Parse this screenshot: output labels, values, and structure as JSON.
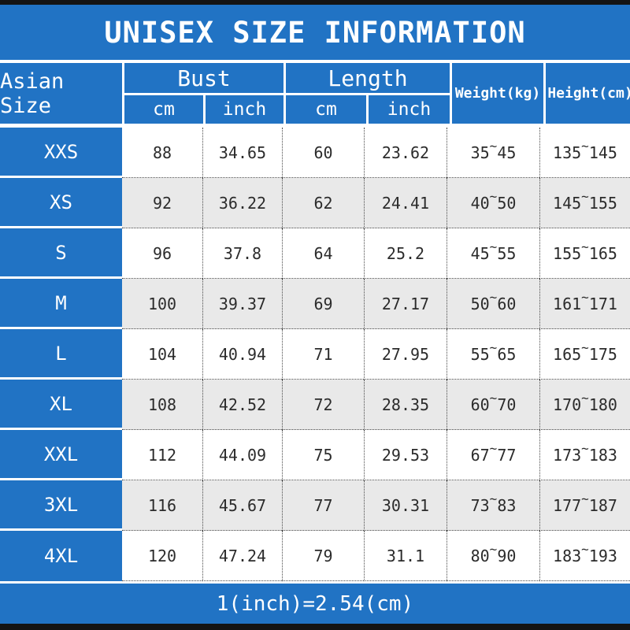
{
  "title": "UNISEX SIZE INFORMATION",
  "footer_note": "1(inch)=2.54(cm)",
  "colors": {
    "header_blue": "#2173c4",
    "alt_row_gray": "#e9e9e9",
    "frame_black": "#141414",
    "text_dark": "#2b2b2b"
  },
  "header": {
    "size_column": "Asian Size",
    "bust_group": "Bust",
    "length_group": "Length",
    "sub_cm": "cm",
    "sub_inch": "inch",
    "weight_column": "Weight(kg)",
    "height_column": "Height(cm)",
    "tilde": "~"
  },
  "rows": [
    {
      "size": "XXS",
      "bust_cm": "88",
      "bust_inch": "34.65",
      "length_cm": "60",
      "length_inch": "23.62",
      "weight": [
        "35",
        "45"
      ],
      "height": [
        "135",
        "145"
      ]
    },
    {
      "size": "XS",
      "bust_cm": "92",
      "bust_inch": "36.22",
      "length_cm": "62",
      "length_inch": "24.41",
      "weight": [
        "40",
        "50"
      ],
      "height": [
        "145",
        "155"
      ]
    },
    {
      "size": "S",
      "bust_cm": "96",
      "bust_inch": "37.8",
      "length_cm": "64",
      "length_inch": "25.2",
      "weight": [
        "45",
        "55"
      ],
      "height": [
        "155",
        "165"
      ]
    },
    {
      "size": "M",
      "bust_cm": "100",
      "bust_inch": "39.37",
      "length_cm": "69",
      "length_inch": "27.17",
      "weight": [
        "50",
        "60"
      ],
      "height": [
        "161",
        "171"
      ]
    },
    {
      "size": "L",
      "bust_cm": "104",
      "bust_inch": "40.94",
      "length_cm": "71",
      "length_inch": "27.95",
      "weight": [
        "55",
        "65"
      ],
      "height": [
        "165",
        "175"
      ]
    },
    {
      "size": "XL",
      "bust_cm": "108",
      "bust_inch": "42.52",
      "length_cm": "72",
      "length_inch": "28.35",
      "weight": [
        "60",
        "70"
      ],
      "height": [
        "170",
        "180"
      ]
    },
    {
      "size": "XXL",
      "bust_cm": "112",
      "bust_inch": "44.09",
      "length_cm": "75",
      "length_inch": "29.53",
      "weight": [
        "67",
        "77"
      ],
      "height": [
        "173",
        "183"
      ]
    },
    {
      "size": "3XL",
      "bust_cm": "116",
      "bust_inch": "45.67",
      "length_cm": "77",
      "length_inch": "30.31",
      "weight": [
        "73",
        "83"
      ],
      "height": [
        "177",
        "187"
      ]
    },
    {
      "size": "4XL",
      "bust_cm": "120",
      "bust_inch": "47.24",
      "length_cm": "79",
      "length_inch": "31.1",
      "weight": [
        "80",
        "90"
      ],
      "height": [
        "183",
        "193"
      ]
    }
  ]
}
